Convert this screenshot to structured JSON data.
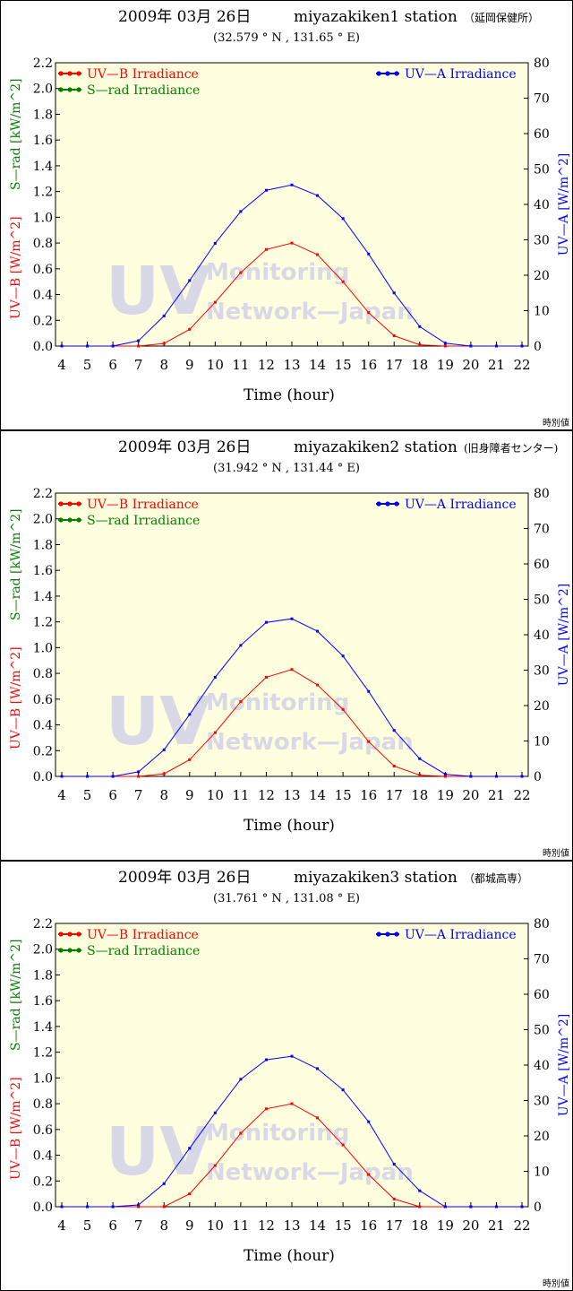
{
  "colors": {
    "uvb": "#ff0000",
    "uva": "#0000ff",
    "srad": "#008000",
    "plot_bg": "#ffffe0",
    "watermark": "#d8d8e6"
  },
  "watermark": {
    "big": "UV",
    "line1": "Monitoring",
    "line2": "Network—Japan"
  },
  "footer_note": "時別値",
  "xlabel": "Time (hour)",
  "left_axis_labels": {
    "uvb": "UV—B [W/m^2]",
    "srad": "S—rad [kW/m^2]"
  },
  "right_axis_label": "UV—A [W/m^2]",
  "legend": {
    "uvb": "UV—B Irradiance",
    "srad": "S—rad Irradiance",
    "uva": "UV—A Irradiance"
  },
  "chart_data": [
    {
      "type": "line",
      "date": "2009年 03月 26日",
      "station": "miyazakiken1 station",
      "location": "（延岡保健所）",
      "coords": "(32.579 ° N , 131.65 ° E)",
      "x": [
        4,
        5,
        6,
        7,
        8,
        9,
        10,
        11,
        12,
        13,
        14,
        15,
        16,
        17,
        18,
        19,
        20,
        21,
        22
      ],
      "xlim": [
        4,
        22
      ],
      "left_ylim": [
        0,
        2.2
      ],
      "right_ylim": [
        0,
        80
      ],
      "left_ticks": [
        0.0,
        0.2,
        0.4,
        0.6,
        0.8,
        1.0,
        1.2,
        1.4,
        1.6,
        1.8,
        2.0,
        2.2
      ],
      "right_ticks": [
        0,
        10,
        20,
        30,
        40,
        50,
        60,
        70,
        80
      ],
      "series": [
        {
          "name": "UV—B Irradiance",
          "axis": "left",
          "values": [
            0,
            0,
            0,
            0,
            0.02,
            0.13,
            0.34,
            0.57,
            0.75,
            0.8,
            0.71,
            0.5,
            0.26,
            0.08,
            0.01,
            0,
            0,
            0,
            0
          ]
        },
        {
          "name": "UV—A Irradiance",
          "axis": "right",
          "values": [
            0,
            0,
            0,
            1.5,
            8.5,
            18.5,
            29,
            38,
            44,
            45.5,
            42.5,
            36,
            26,
            15,
            5.5,
            0.8,
            0,
            0,
            0
          ]
        }
      ]
    },
    {
      "type": "line",
      "date": "2009年 03月 26日",
      "station": "miyazakiken2 station",
      "location": "(旧身障者センター)",
      "coords": "(31.942 ° N , 131.44 ° E)",
      "x": [
        4,
        5,
        6,
        7,
        8,
        9,
        10,
        11,
        12,
        13,
        14,
        15,
        16,
        17,
        18,
        19,
        20,
        21,
        22
      ],
      "xlim": [
        4,
        22
      ],
      "left_ylim": [
        0,
        2.2
      ],
      "right_ylim": [
        0,
        80
      ],
      "left_ticks": [
        0.0,
        0.2,
        0.4,
        0.6,
        0.8,
        1.0,
        1.2,
        1.4,
        1.6,
        1.8,
        2.0,
        2.2
      ],
      "right_ticks": [
        0,
        10,
        20,
        30,
        40,
        50,
        60,
        70,
        80
      ],
      "series": [
        {
          "name": "UV—B Irradiance",
          "axis": "left",
          "values": [
            0,
            0,
            0,
            0,
            0.02,
            0.13,
            0.34,
            0.58,
            0.77,
            0.83,
            0.71,
            0.52,
            0.27,
            0.08,
            0.01,
            0,
            0,
            0,
            0
          ]
        },
        {
          "name": "UV—A Irradiance",
          "axis": "right",
          "values": [
            0,
            0,
            0,
            1.3,
            7.5,
            17.5,
            28,
            37,
            43.5,
            44.5,
            41,
            34,
            24,
            13,
            5,
            0.6,
            0,
            0,
            0
          ]
        }
      ]
    },
    {
      "type": "line",
      "date": "2009年 03月 26日",
      "station": "miyazakiken3 station",
      "location": "（都城高専）",
      "coords": "(31.761 ° N , 131.08 ° E)",
      "x": [
        4,
        5,
        6,
        7,
        8,
        9,
        10,
        11,
        12,
        13,
        14,
        15,
        16,
        17,
        18,
        19,
        20,
        21,
        22
      ],
      "xlim": [
        4,
        22
      ],
      "left_ylim": [
        0,
        2.2
      ],
      "right_ylim": [
        0,
        80
      ],
      "left_ticks": [
        0.0,
        0.2,
        0.4,
        0.6,
        0.8,
        1.0,
        1.2,
        1.4,
        1.6,
        1.8,
        2.0,
        2.2
      ],
      "right_ticks": [
        0,
        10,
        20,
        30,
        40,
        50,
        60,
        70,
        80
      ],
      "series": [
        {
          "name": "UV—B Irradiance",
          "axis": "left",
          "values": [
            0,
            0,
            0,
            0,
            0,
            0.1,
            0.32,
            0.57,
            0.76,
            0.8,
            0.69,
            0.48,
            0.25,
            0.06,
            0,
            0,
            0,
            0,
            0
          ]
        },
        {
          "name": "UV—A Irradiance",
          "axis": "right",
          "values": [
            0,
            0,
            0,
            0.5,
            6.5,
            16.5,
            26.5,
            36,
            41.5,
            42.5,
            39,
            33,
            24,
            12,
            4.5,
            0,
            0,
            0,
            0
          ]
        }
      ]
    }
  ]
}
